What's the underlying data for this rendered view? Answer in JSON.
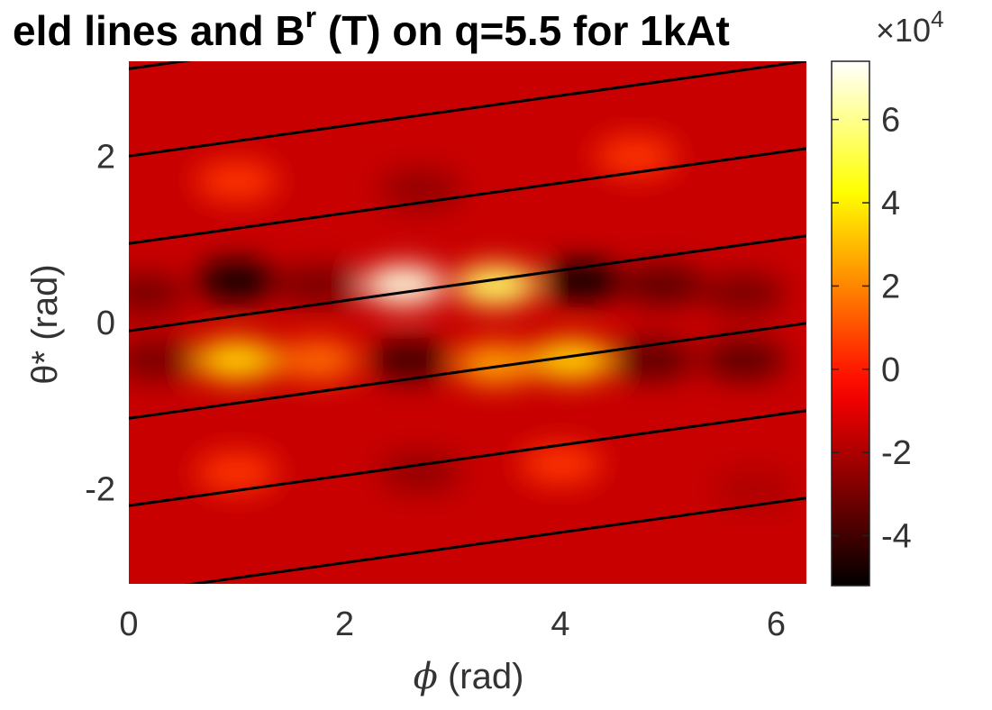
{
  "chart_data": {
    "type": "heatmap",
    "title": "eld lines and B",
    "title_superscript": "r",
    "title_rest": " (T) on q=5.5 for 1kAt",
    "xlabel_symbol": "ϕ",
    "xlabel_unit": " (rad)",
    "ylabel": "θ* (rad)",
    "xlim": [
      0,
      6.28
    ],
    "ylim": [
      -3.14,
      3.14
    ],
    "x_ticks": [
      0,
      2,
      4,
      6
    ],
    "x_tick_labels": [
      "0",
      "2",
      "4",
      "6"
    ],
    "y_ticks": [
      -2,
      0,
      2
    ],
    "y_tick_labels": [
      "-2",
      "0",
      "2"
    ],
    "colorbar": {
      "range": [
        -5.2,
        7.4
      ],
      "ticks": [
        -4,
        -2,
        0,
        2,
        4,
        6
      ],
      "tick_labels": [
        "-4",
        "-2",
        "0",
        "2",
        "4",
        "6"
      ],
      "exponent_label": "×10",
      "exponent_power": "4",
      "colormap": "hot"
    },
    "background_value": -1.5,
    "features": [
      {
        "phi": 0.15,
        "theta": 0.35,
        "value": -3.0
      },
      {
        "phi": 1.0,
        "theta": 0.5,
        "value": -5.0
      },
      {
        "phi": 1.75,
        "theta": 0.45,
        "value": -3.0
      },
      {
        "phi": 2.55,
        "theta": 0.45,
        "value": 7.0
      },
      {
        "phi": 3.4,
        "theta": 0.45,
        "value": 5.5
      },
      {
        "phi": 4.2,
        "theta": 0.5,
        "value": -5.0
      },
      {
        "phi": 4.95,
        "theta": 0.45,
        "value": -3.5
      },
      {
        "phi": 5.7,
        "theta": 0.35,
        "value": -3.0
      },
      {
        "phi": 0.25,
        "theta": -0.45,
        "value": -3.0
      },
      {
        "phi": 1.0,
        "theta": -0.45,
        "value": 3.5
      },
      {
        "phi": 1.75,
        "theta": -0.45,
        "value": 1.5
      },
      {
        "phi": 2.6,
        "theta": -0.45,
        "value": -4.0
      },
      {
        "phi": 3.4,
        "theta": -0.5,
        "value": 2.5
      },
      {
        "phi": 4.1,
        "theta": -0.45,
        "value": 3.5
      },
      {
        "phi": 4.85,
        "theta": -0.45,
        "value": -3.5
      },
      {
        "phi": 5.7,
        "theta": -0.45,
        "value": -3.5
      },
      {
        "phi": 1.0,
        "theta": 1.7,
        "value": 0.5
      },
      {
        "phi": 2.7,
        "theta": 1.6,
        "value": -2.5
      },
      {
        "phi": 4.7,
        "theta": 2.0,
        "value": 0.5
      },
      {
        "phi": 1.0,
        "theta": -1.8,
        "value": 0.5
      },
      {
        "phi": 2.7,
        "theta": -1.8,
        "value": -2.5
      },
      {
        "phi": 4.0,
        "theta": -1.7,
        "value": 0.5
      },
      {
        "phi": 5.8,
        "theta": -2.0,
        "value": -2.0
      }
    ],
    "field_lines": {
      "slope": 0.1818,
      "intercepts": [
        -4.3,
        -3.25,
        -2.2,
        -1.15,
        -0.1,
        0.95,
        2.0,
        3.05,
        4.1
      ]
    }
  }
}
